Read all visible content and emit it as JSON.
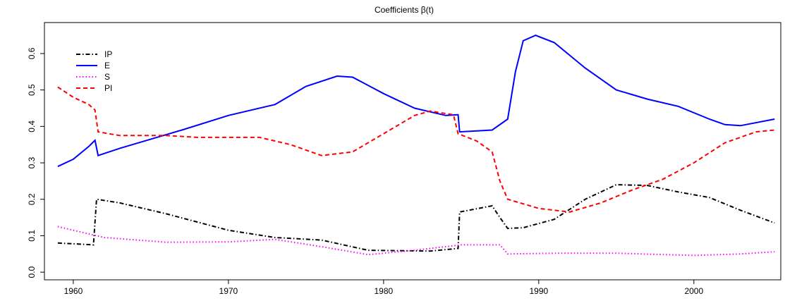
{
  "chart_data": {
    "type": "line",
    "title": "Coefficients β(t)",
    "xlim": [
      1958.14,
      2005.6
    ],
    "xticks": [
      1960,
      1970,
      1980,
      1990,
      2000
    ],
    "ylim": [
      -0.021,
      0.685
    ],
    "yticks": [
      {
        "value": 0,
        "label": "0.0"
      },
      0.1,
      0.2,
      0.3,
      0.4,
      0.5,
      0.6
    ],
    "legend": "top-left",
    "series": [
      {
        "name": "IP",
        "color": "#000000",
        "linestyle": "dashdot",
        "x": [
          1959,
          1961.3,
          1961.5,
          1963,
          1966,
          1970,
          1973,
          1976,
          1979,
          1983,
          1984.8,
          1984.9,
          1987,
          1987.5,
          1988,
          1989,
          1991,
          1993,
          1995,
          1997,
          1999,
          2001,
          2003,
          2005.2
        ],
        "values": [
          0.08,
          0.075,
          0.2,
          0.19,
          0.16,
          0.115,
          0.095,
          0.088,
          0.06,
          0.058,
          0.065,
          0.165,
          0.182,
          0.15,
          0.12,
          0.122,
          0.145,
          0.2,
          0.24,
          0.238,
          0.22,
          0.205,
          0.17,
          0.135
        ]
      },
      {
        "name": "E",
        "color": "#0000ff",
        "linestyle": "solid",
        "x": [
          1959,
          1960,
          1961,
          1961.4,
          1961.6,
          1963,
          1965,
          1967,
          1970,
          1973,
          1975,
          1977,
          1978,
          1980,
          1982,
          1984,
          1984.8,
          1984.9,
          1987,
          1988,
          1988.5,
          1989,
          1989.8,
          1991,
          1993,
          1995,
          1997,
          1999,
          2001,
          2002,
          2003,
          2005.2
        ],
        "values": [
          0.29,
          0.31,
          0.345,
          0.362,
          0.32,
          0.34,
          0.365,
          0.39,
          0.43,
          0.46,
          0.51,
          0.538,
          0.535,
          0.49,
          0.45,
          0.43,
          0.432,
          0.385,
          0.39,
          0.42,
          0.55,
          0.635,
          0.65,
          0.63,
          0.56,
          0.5,
          0.475,
          0.455,
          0.42,
          0.405,
          0.402,
          0.42
        ]
      },
      {
        "name": "S",
        "color": "#ff00ff",
        "linestyle": "dotted",
        "x": [
          1959,
          1962,
          1966,
          1970,
          1973,
          1976,
          1979,
          1982,
          1985,
          1987.5,
          1988,
          1991,
          1995,
          2000,
          2003,
          2005.2
        ],
        "values": [
          0.125,
          0.095,
          0.082,
          0.083,
          0.09,
          0.07,
          0.048,
          0.06,
          0.075,
          0.075,
          0.05,
          0.052,
          0.052,
          0.046,
          0.05,
          0.056
        ]
      },
      {
        "name": "PI",
        "color": "#ff0000",
        "linestyle": "dashed",
        "x": [
          1959,
          1960,
          1961,
          1961.4,
          1961.6,
          1963,
          1966,
          1968,
          1972,
          1974,
          1976,
          1978,
          1980,
          1982,
          1983,
          1984.5,
          1984.8,
          1986,
          1987,
          1987.5,
          1988,
          1990,
          1992,
          1994,
          1996,
          1998,
          2000,
          2002,
          2004,
          2005.2
        ],
        "values": [
          0.508,
          0.48,
          0.46,
          0.445,
          0.385,
          0.375,
          0.375,
          0.37,
          0.37,
          0.35,
          0.32,
          0.33,
          0.38,
          0.43,
          0.442,
          0.432,
          0.38,
          0.36,
          0.33,
          0.25,
          0.2,
          0.175,
          0.165,
          0.19,
          0.225,
          0.255,
          0.3,
          0.355,
          0.385,
          0.39
        ]
      }
    ]
  }
}
